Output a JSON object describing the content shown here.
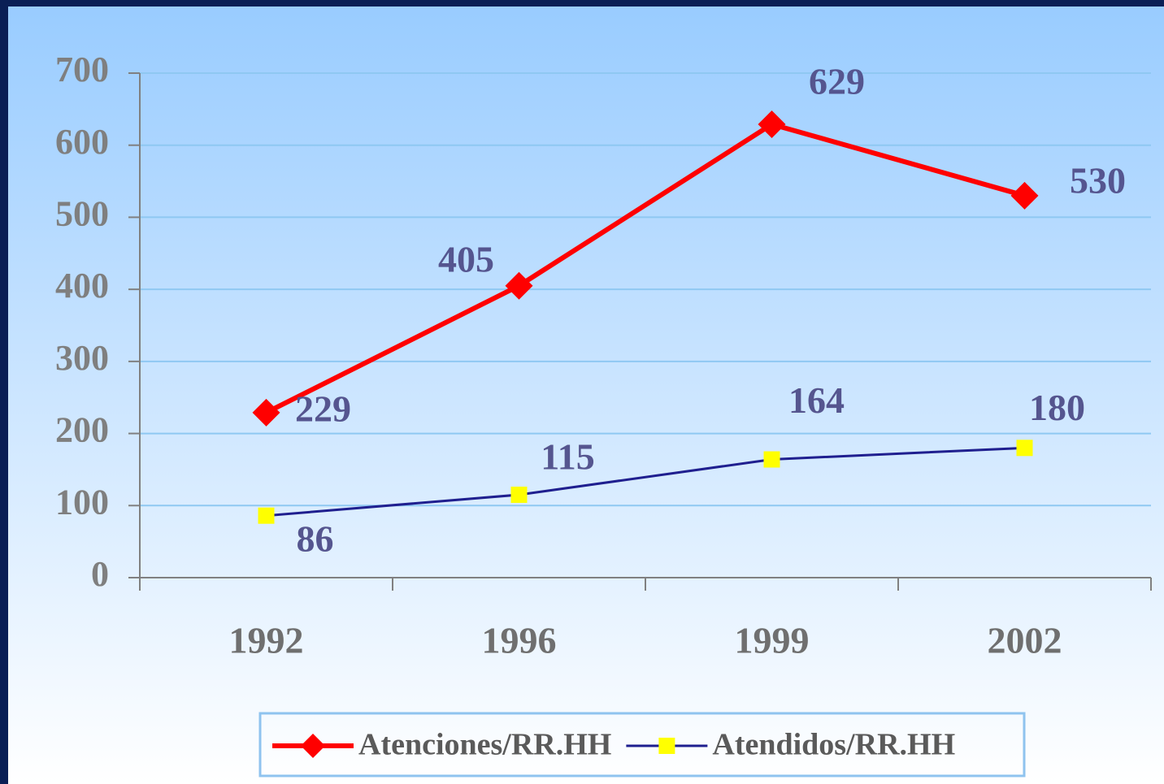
{
  "chart_data": {
    "type": "line",
    "categories": [
      "1992",
      "1996",
      "1999",
      "2002"
    ],
    "series": [
      {
        "name": "Atenciones/RR.HH",
        "color": "#ff0000",
        "marker": "diamond",
        "values": [
          229,
          405,
          629,
          530
        ]
      },
      {
        "name": "Atendidos/RR.HH",
        "color": "#1f1f8f",
        "marker": "square",
        "marker_color": "#ffff00",
        "values": [
          86,
          115,
          164,
          180
        ]
      }
    ],
    "ylim": [
      0,
      700
    ],
    "yticks": [
      0,
      100,
      200,
      300,
      400,
      500,
      600,
      700
    ],
    "grid": true,
    "legend": "bottom"
  }
}
